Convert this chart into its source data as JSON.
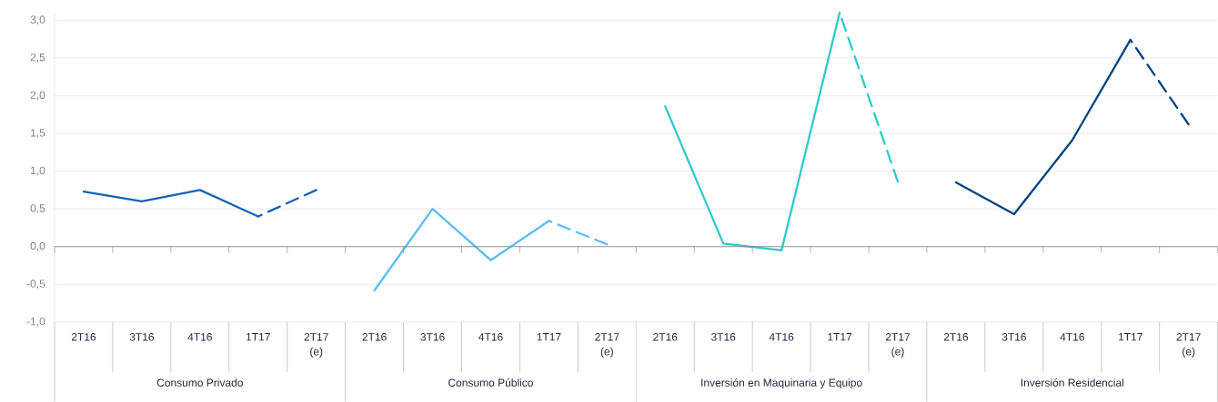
{
  "chart_data": {
    "type": "line",
    "categories": [
      "2T16",
      "3T16",
      "4T16",
      "1T17",
      "2T17 (e)",
      "2T16",
      "3T16",
      "4T16",
      "1T17",
      "2T17 (e)",
      "2T16",
      "3T16",
      "4T16",
      "1T17",
      "2T17 (e)",
      "2T16",
      "3T16",
      "4T16",
      "1T17",
      "2T17 (e)"
    ],
    "series": [
      {
        "color": "#1464b4",
        "line_style": "solid",
        "values": [
          0.73,
          0.6,
          0.75,
          0.4,
          null,
          null,
          null,
          null,
          null,
          null,
          null,
          null,
          null,
          null,
          null,
          null,
          null,
          null,
          null,
          null
        ]
      },
      {
        "color": "#1464b4",
        "line_style": "dashed",
        "values": [
          null,
          null,
          null,
          0.4,
          0.75,
          null,
          null,
          null,
          null,
          null,
          null,
          null,
          null,
          null,
          null,
          null,
          null,
          null,
          null,
          null
        ]
      },
      {
        "color": "#5bbcf5",
        "line_style": "solid",
        "values": [
          null,
          null,
          null,
          null,
          null,
          -0.58,
          0.5,
          -0.18,
          0.34,
          null,
          null,
          null,
          null,
          null,
          null,
          null,
          null,
          null,
          null,
          null
        ]
      },
      {
        "color": "#5bbcf5",
        "line_style": "dashed",
        "values": [
          null,
          null,
          null,
          null,
          null,
          null,
          null,
          null,
          0.34,
          0.03,
          null,
          null,
          null,
          null,
          null,
          null,
          null,
          null,
          null,
          null
        ]
      },
      {
        "color": "#2ecbcb",
        "line_style": "solid",
        "values": [
          null,
          null,
          null,
          null,
          null,
          null,
          null,
          null,
          null,
          null,
          1.86,
          0.04,
          -0.05,
          3.1,
          null,
          null,
          null,
          null,
          null,
          null
        ]
      },
      {
        "color": "#2ecbcb",
        "line_style": "dashed",
        "values": [
          null,
          null,
          null,
          null,
          null,
          null,
          null,
          null,
          null,
          null,
          null,
          null,
          null,
          3.1,
          0.86,
          null,
          null,
          null,
          null,
          null
        ]
      },
      {
        "color": "#004481",
        "line_style": "solid",
        "values": [
          null,
          null,
          null,
          null,
          null,
          null,
          null,
          null,
          null,
          null,
          null,
          null,
          null,
          null,
          null,
          0.85,
          0.43,
          1.41,
          2.74,
          null
        ]
      },
      {
        "color": "#004481",
        "line_style": "dashed",
        "values": [
          null,
          null,
          null,
          null,
          null,
          null,
          null,
          null,
          null,
          null,
          null,
          null,
          null,
          null,
          null,
          null,
          null,
          null,
          2.74,
          1.62
        ]
      }
    ],
    "ylim": [
      -1,
      3.1
    ],
    "yticks": [
      {
        "value": -1,
        "label": "-1,0"
      },
      {
        "value": -0.5,
        "label": "-0,5"
      },
      {
        "value": 0,
        "label": "0,0"
      },
      {
        "value": 0.5,
        "label": "0,5"
      },
      {
        "value": 1,
        "label": "1,0"
      },
      {
        "value": 1.5,
        "label": "1,5"
      },
      {
        "value": 2,
        "label": "2,0"
      },
      {
        "value": 2.5,
        "label": "2,5"
      },
      {
        "value": 3,
        "label": "3,0"
      }
    ],
    "grid": "y",
    "annotations": [
      "Consumo Privado",
      "Consumo Público",
      "Inversión en Maquinaria y Equipo",
      "Inversión Residencial"
    ]
  }
}
